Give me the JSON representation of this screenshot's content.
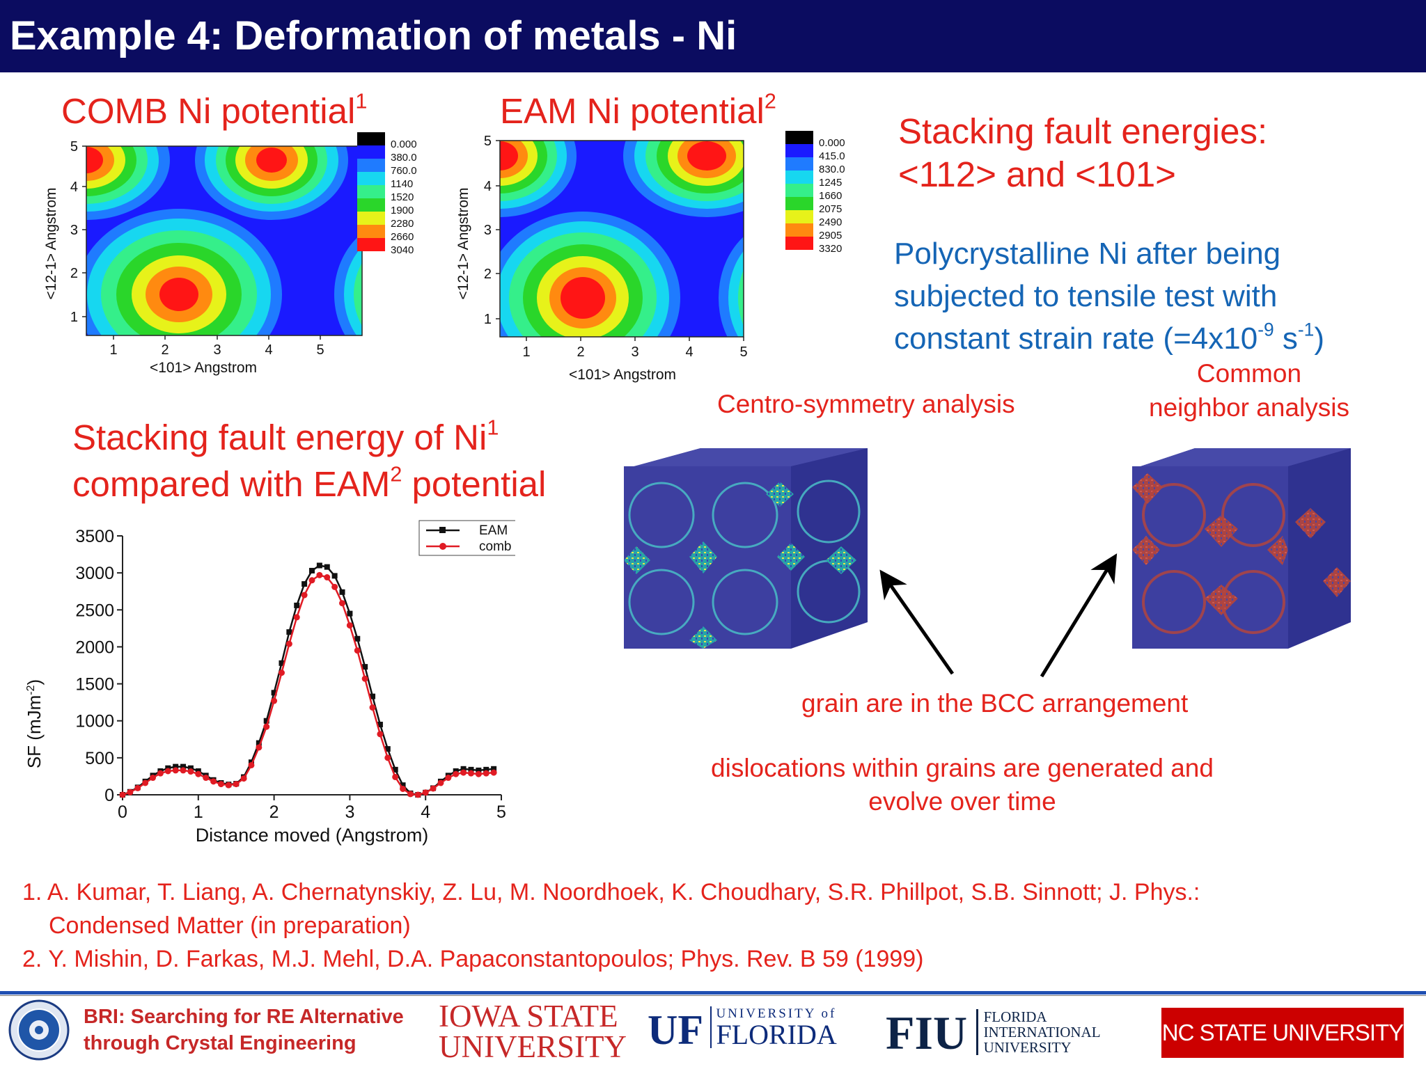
{
  "slide": {
    "title": "Example 4: Deformation of metals - Ni"
  },
  "comb_panel": {
    "label": "COMB Ni potential",
    "label_sup": "1",
    "y_title": "<12-1> Angstrom",
    "x_title": "<101> Angstrom",
    "x_ticks": [
      "1",
      "2",
      "3",
      "4",
      "5"
    ],
    "y_ticks": [
      "1",
      "2",
      "3",
      "4",
      "5"
    ],
    "colorbar": [
      "0.000",
      "380.0",
      "760.0",
      "1140",
      "1520",
      "1900",
      "2280",
      "2660",
      "3040"
    ]
  },
  "eam_panel": {
    "label": "EAM Ni potential",
    "label_sup": "2",
    "y_title": "<12-1> Angstrom",
    "x_title": "<101> Angstrom",
    "x_ticks": [
      "1",
      "2",
      "3",
      "4",
      "5"
    ],
    "y_ticks": [
      "1",
      "2",
      "3",
      "4",
      "5"
    ],
    "colorbar": [
      "0.000",
      "415.0",
      "830.0",
      "1245",
      "1660",
      "2075",
      "2490",
      "2905",
      "3320"
    ]
  },
  "colorbar_colors": [
    "#000000",
    "#1a1aff",
    "#1f7bff",
    "#17d7f0",
    "#35ef8a",
    "#2ad62a",
    "#e7f21a",
    "#ff8a10",
    "#ff1515"
  ],
  "stacking_heading": {
    "line1": "Stacking fault energies:",
    "line2": "<112> and <101>"
  },
  "poly_text": {
    "line1": "Polycrystalline Ni after being",
    "line2": "subjected to tensile test with",
    "line3_pre": "constant strain rate (=4x10",
    "line3_sup1": "-9",
    "line3_mid": " s",
    "line3_sup2": "-1",
    "line3_end": ")"
  },
  "sfe_heading": {
    "line1": "Stacking fault energy of Ni",
    "line1_sup": "1",
    "line2_pre": "compared with EAM",
    "line2_sup": "2",
    "line2_end": " potential"
  },
  "analysis_labels": {
    "centro": "Centro-symmetry analysis",
    "common_line1": "Common",
    "common_line2": "neighbor analysis",
    "grain": "grain are in the BCC arrangement",
    "disloc_line1": "dislocations within grains are generated and",
    "disloc_line2": "evolve over time"
  },
  "chart_data": {
    "type": "line",
    "xlabel": "Distance moved (Angstrom)",
    "ylabel": "SF (mJm-2)",
    "ylabel_base": "SF (mJm",
    "ylabel_sup": "-2",
    "ylabel_end": ")",
    "xlim": [
      0,
      5
    ],
    "ylim": [
      0,
      3500
    ],
    "x_ticks": [
      0,
      1,
      2,
      3,
      4,
      5
    ],
    "y_ticks": [
      0,
      500,
      1000,
      1500,
      2000,
      2500,
      3000,
      3500
    ],
    "legend_position": "top-right",
    "x": [
      0,
      0.1,
      0.2,
      0.3,
      0.4,
      0.5,
      0.6,
      0.7,
      0.8,
      0.9,
      1.0,
      1.1,
      1.2,
      1.3,
      1.4,
      1.5,
      1.6,
      1.7,
      1.8,
      1.9,
      2.0,
      2.1,
      2.2,
      2.3,
      2.4,
      2.5,
      2.6,
      2.7,
      2.8,
      2.9,
      3.0,
      3.1,
      3.2,
      3.3,
      3.4,
      3.5,
      3.6,
      3.7,
      3.8,
      3.9,
      4.0,
      4.1,
      4.2,
      4.3,
      4.4,
      4.5,
      4.6,
      4.7,
      4.8,
      4.9
    ],
    "series": [
      {
        "name": "EAM",
        "color": "#111111",
        "marker": "square",
        "values": [
          0,
          40,
          100,
          180,
          260,
          320,
          360,
          380,
          380,
          360,
          320,
          260,
          200,
          160,
          140,
          150,
          240,
          440,
          700,
          1000,
          1380,
          1780,
          2200,
          2560,
          2850,
          3030,
          3100,
          3080,
          2960,
          2740,
          2450,
          2110,
          1730,
          1330,
          950,
          620,
          340,
          130,
          20,
          0,
          30,
          90,
          180,
          260,
          320,
          350,
          340,
          330,
          340,
          350
        ]
      },
      {
        "name": "comb",
        "color": "#e01b24",
        "marker": "circle",
        "values": [
          0,
          35,
          90,
          160,
          230,
          290,
          320,
          330,
          330,
          315,
          280,
          230,
          180,
          145,
          130,
          145,
          220,
          400,
          640,
          920,
          1270,
          1650,
          2040,
          2400,
          2700,
          2900,
          2970,
          2940,
          2810,
          2590,
          2290,
          1950,
          1570,
          1180,
          820,
          500,
          240,
          80,
          10,
          0,
          30,
          85,
          160,
          230,
          280,
          300,
          290,
          280,
          290,
          300
        ]
      }
    ]
  },
  "references": {
    "ref1_line1": "1. A. Kumar, T. Liang, A. Chernatynskiy, Z. Lu, M. Noordhoek, K. Choudhary, S.R. Phillpot, S.B. Sinnott; J. Phys.:",
    "ref1_line2": "Condensed Matter (in preparation)",
    "ref2": "2. Y. Mishin, D. Farkas, M.J. Mehl, D.A. Papaconstantopoulos; Phys. Rev. B 59 (1999)"
  },
  "footer": {
    "bri_line1": "BRI:  Searching for RE Alternative",
    "bri_line2": "through  Crystal Engineering",
    "iowa_line1": "IOWA STATE",
    "iowa_line2": "UNIVERSITY",
    "uf_mark": "UF",
    "uf_line1": "UNIVERSITY of",
    "uf_line2": "FLORIDA",
    "fiu_mark": "FIU",
    "fiu_line1": "FLORIDA",
    "fiu_line2": "INTERNATIONAL",
    "fiu_line3": "UNIVERSITY",
    "ncstate": "NC STATE UNIVERSITY"
  }
}
